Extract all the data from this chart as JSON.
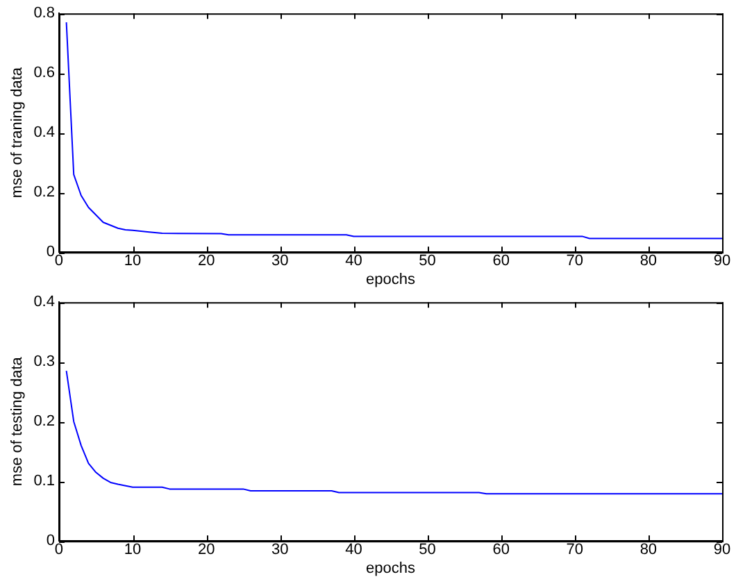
{
  "chart_data": [
    {
      "type": "line",
      "xlabel": "epochs",
      "ylabel": "mse of traning data",
      "x": [
        1,
        2,
        3,
        4,
        5,
        6,
        7,
        8,
        9,
        10,
        12,
        14,
        22,
        23,
        39,
        40,
        71,
        72,
        90
      ],
      "series": [
        {
          "color": "#0000ff",
          "values": [
            0.77,
            0.26,
            0.19,
            0.15,
            0.125,
            0.1,
            0.09,
            0.08,
            0.075,
            0.073,
            0.068,
            0.063,
            0.062,
            0.058,
            0.058,
            0.053,
            0.053,
            0.046,
            0.046
          ]
        }
      ],
      "xlim": [
        0,
        90
      ],
      "xticks": [
        0,
        10,
        20,
        30,
        40,
        50,
        60,
        70,
        80,
        90
      ],
      "ylim": [
        0,
        0.8
      ],
      "yticks": [
        0,
        0.2,
        0.4,
        0.6,
        0.8
      ],
      "grid": false,
      "legend": false,
      "marker": "none",
      "line_style": "solid"
    },
    {
      "type": "line",
      "xlabel": "epochs",
      "ylabel": "mse of testing data",
      "x": [
        1,
        2,
        3,
        4,
        5,
        6,
        7,
        8,
        10,
        14,
        15,
        25,
        26,
        37,
        38,
        57,
        58,
        90
      ],
      "series": [
        {
          "color": "#0000ff",
          "values": [
            0.285,
            0.2,
            0.16,
            0.13,
            0.115,
            0.105,
            0.098,
            0.095,
            0.09,
            0.09,
            0.087,
            0.087,
            0.084,
            0.084,
            0.081,
            0.081,
            0.079,
            0.079
          ]
        }
      ],
      "xlim": [
        0,
        90
      ],
      "xticks": [
        0,
        10,
        20,
        30,
        40,
        50,
        60,
        70,
        80,
        90
      ],
      "ylim": [
        0,
        0.4
      ],
      "yticks": [
        0,
        0.1,
        0.2,
        0.3,
        0.4
      ],
      "grid": false,
      "legend": false,
      "marker": "none",
      "line_style": "solid"
    }
  ]
}
